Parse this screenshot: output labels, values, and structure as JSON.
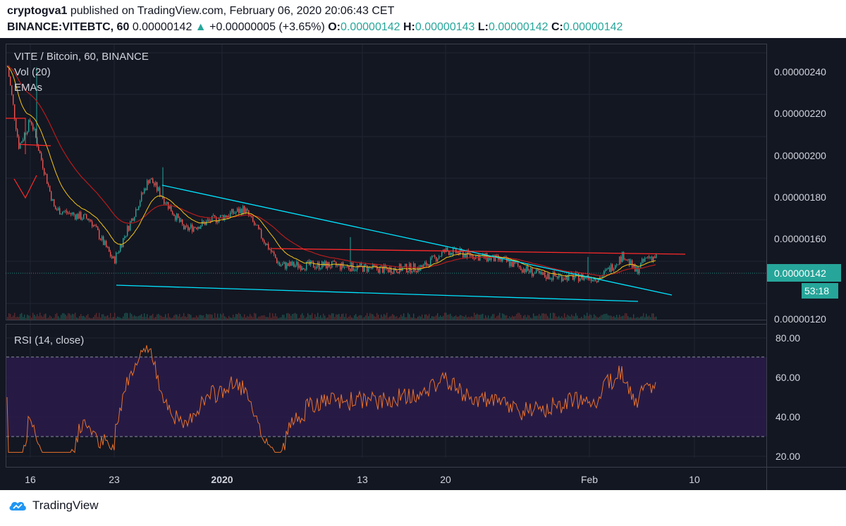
{
  "header": {
    "author": "cryptogva1",
    "published": "published on TradingView.com, February 06, 2020 20:06:43 CET",
    "symbol": "BINANCE:VITEBTC, 60",
    "price": "0.00000142",
    "change_arrow": "▲",
    "change": "+0.00000005 (+3.65%)",
    "o_label": "O:",
    "o_value": "0.00000142",
    "h_label": "H:",
    "h_value": "0.00000143",
    "l_label": "L:",
    "l_value": "0.00000142",
    "c_label": "C:",
    "c_value": "0.00000142"
  },
  "legend": {
    "title": "VITE / Bitcoin, 60, BINANCE",
    "vol": "Vol (20)",
    "emas": "EMAs",
    "rsi": "RSI (14, close)"
  },
  "price_axis": {
    "ticks": [
      "0.00000240",
      "0.00000220",
      "0.00000200",
      "0.00000180",
      "0.00000160",
      "0.00000120"
    ],
    "last_price": "0.00000142",
    "countdown": "53:18"
  },
  "rsi_axis": {
    "ticks": [
      "80.00",
      "60.00",
      "40.00",
      "20.00"
    ]
  },
  "time_axis": {
    "ticks": [
      "16",
      "16",
      "23",
      "2020",
      "13",
      "20",
      "Feb",
      "10"
    ]
  },
  "footer": {
    "brand": "TradingView"
  },
  "colors": {
    "background": "#131722",
    "up": "#26a69a",
    "down": "#ef5350",
    "trendline": "#00e5ff",
    "resistance": "#ff2a2a",
    "ema_fast": "#f5c518",
    "ema_slow": "#b71c1c",
    "rsi_line": "#e8712a",
    "rsi_band": "#2a1b4a",
    "price_label_bg": "#26a69a"
  },
  "chart_data": {
    "type": "candlestick",
    "title": "VITE / Bitcoin, 60, BINANCE",
    "unit": "BTC",
    "interval": "60",
    "ylim": [
      1.2e-06,
      2.5e-06
    ],
    "key_points": [
      {
        "date": "2019-12-14",
        "close": 2.35e-06
      },
      {
        "date": "2019-12-15",
        "close": 1.95e-06
      },
      {
        "date": "2019-12-16",
        "close": 2.08e-06
      },
      {
        "date": "2019-12-18",
        "close": 1.65e-06
      },
      {
        "date": "2019-12-21",
        "close": 1.6e-06
      },
      {
        "date": "2019-12-23",
        "close": 1.4e-06
      },
      {
        "date": "2019-12-26",
        "close": 1.8e-06
      },
      {
        "date": "2019-12-29",
        "close": 1.55e-06
      },
      {
        "date": "2020-01-03",
        "close": 1.65e-06
      },
      {
        "date": "2020-01-06",
        "close": 1.38e-06
      },
      {
        "date": "2020-01-10",
        "close": 1.38e-06
      },
      {
        "date": "2020-01-15",
        "close": 1.36e-06
      },
      {
        "date": "2020-01-18",
        "close": 1.37e-06
      },
      {
        "date": "2020-01-20",
        "close": 1.45e-06
      },
      {
        "date": "2020-01-25",
        "close": 1.4e-06
      },
      {
        "date": "2020-01-28",
        "close": 1.33e-06
      },
      {
        "date": "2020-02-02",
        "close": 1.32e-06
      },
      {
        "date": "2020-02-04",
        "close": 1.43e-06
      },
      {
        "date": "2020-02-05",
        "close": 1.35e-06
      },
      {
        "date": "2020-02-06",
        "close": 1.42e-06
      }
    ],
    "resistance_level": 1.52e-06,
    "rsi": {
      "period": 14,
      "ylim": [
        20,
        80
      ],
      "overbought": 70,
      "oversold": 30,
      "last": 62
    }
  }
}
